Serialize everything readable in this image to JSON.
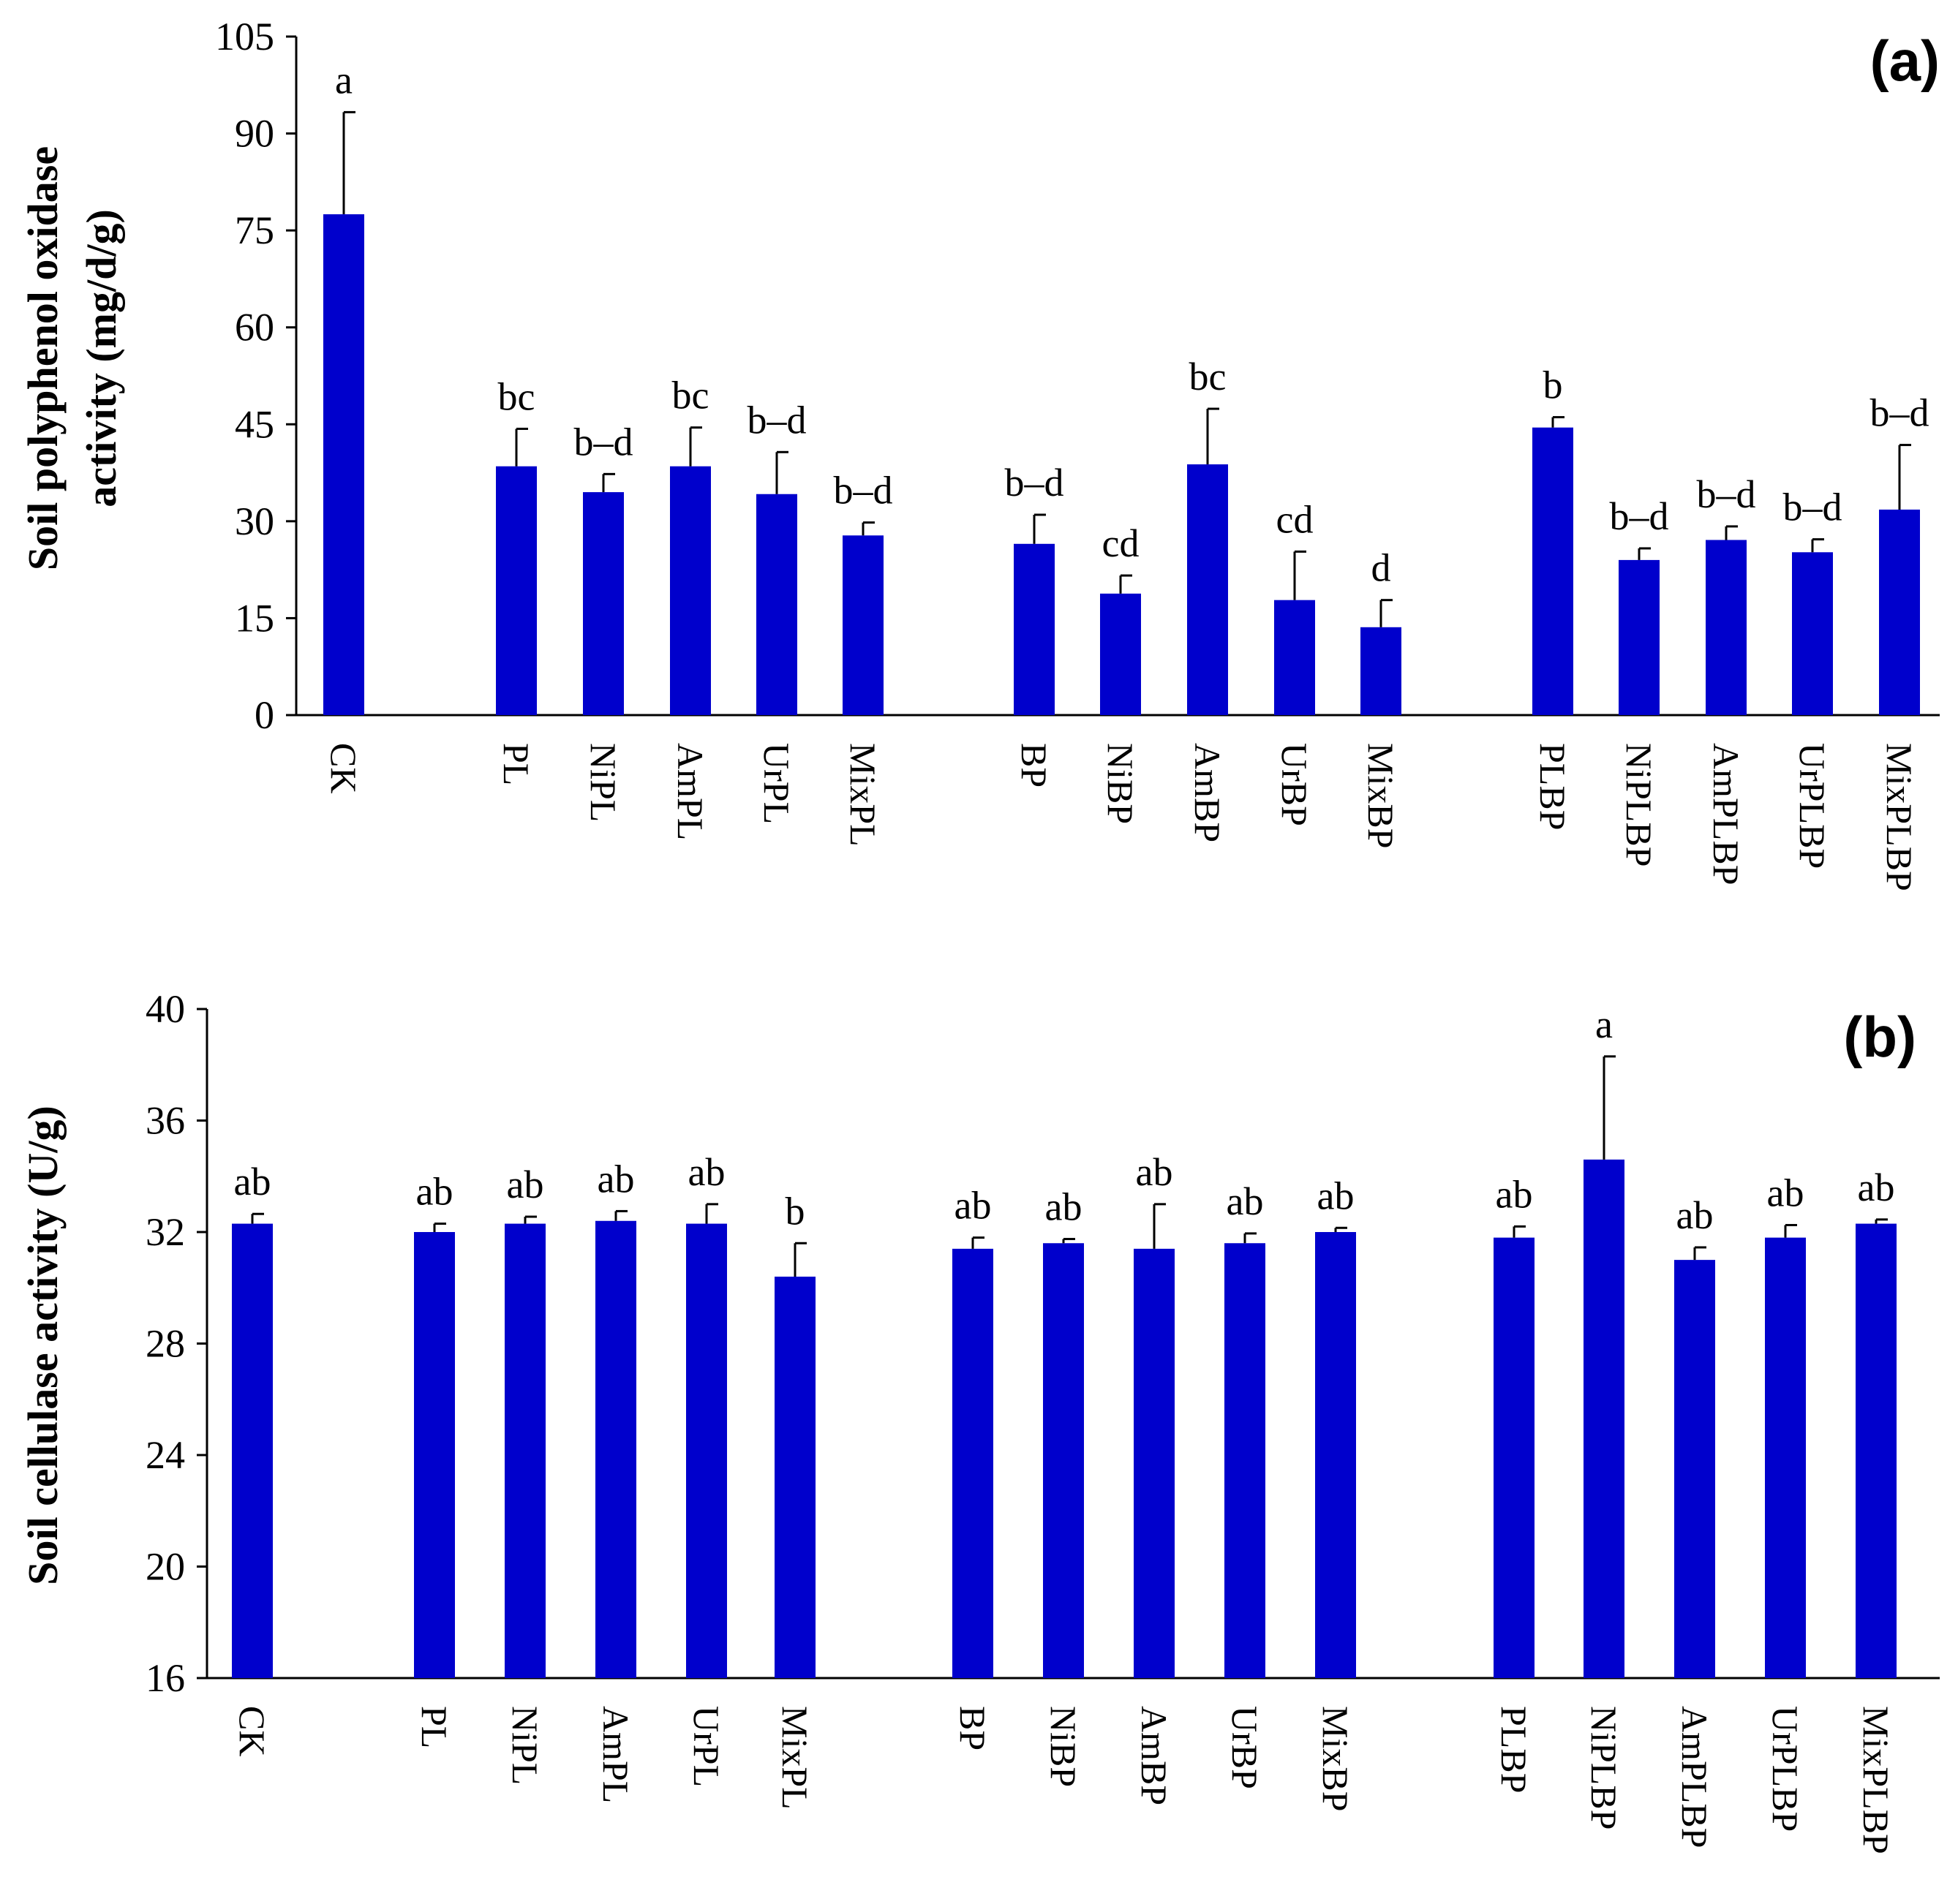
{
  "bar_color": "#0000CC",
  "chart_data": [
    {
      "type": "bar",
      "panel_label": "(a)",
      "ylabel": "Soil polyphenol oxidase activity (mg/d/g)",
      "ylabel_lines": [
        "Soil polyphenol oxidase",
        "activity (mg/d/g)"
      ],
      "ylim": [
        0,
        105
      ],
      "yticks": [
        0,
        15,
        30,
        45,
        60,
        75,
        90,
        105
      ],
      "categories": [
        "CK",
        "PL",
        "NiPL",
        "AmPL",
        "UrPL",
        "MixPL",
        "BP",
        "NiBP",
        "AmBP",
        "UrBP",
        "MixBP",
        "PLBP",
        "NiPLBP",
        "AmPLBP",
        "UrPLBP",
        "MixPLBP"
      ],
      "values": [
        77.5,
        38.5,
        34.5,
        38.5,
        34.2,
        27.8,
        26.5,
        18.8,
        38.8,
        17.8,
        13.6,
        44.5,
        24.0,
        27.1,
        25.2,
        31.8
      ],
      "errors": [
        15.8,
        5.8,
        2.8,
        6.0,
        6.5,
        2.0,
        4.5,
        2.8,
        8.6,
        7.5,
        4.2,
        1.6,
        1.8,
        2.1,
        2.0,
        10.0
      ],
      "letters": [
        "a",
        "bc",
        "b–d",
        "bc",
        "b–d",
        "b–d",
        "b–d",
        "cd",
        "bc",
        "cd",
        "d",
        "b",
        "b–d",
        "b–d",
        "b–d",
        "b–d"
      ]
    },
    {
      "type": "bar",
      "panel_label": "(b)",
      "ylabel": "Soil cellulase activity (U/g)",
      "ylabel_lines": [
        "Soil cellulase activity (U/g)"
      ],
      "ylim": [
        16,
        40
      ],
      "yticks": [
        16,
        20,
        24,
        28,
        32,
        36,
        40
      ],
      "categories": [
        "CK",
        "PL",
        "NiPL",
        "AmPL",
        "UrPL",
        "MixPL",
        "BP",
        "NiBP",
        "AmBP",
        "UrBP",
        "MixBP",
        "PLBP",
        "NiPLBP",
        "AmPLBP",
        "UrPLBP",
        "MixPLBP"
      ],
      "values": [
        32.3,
        32.0,
        32.3,
        32.4,
        32.3,
        30.4,
        31.4,
        31.6,
        31.4,
        31.6,
        32.0,
        31.8,
        34.6,
        31.0,
        31.8,
        32.3
      ],
      "errors": [
        0.35,
        0.3,
        0.25,
        0.35,
        0.7,
        1.2,
        0.4,
        0.15,
        1.6,
        0.35,
        0.15,
        0.4,
        3.7,
        0.45,
        0.45,
        0.15
      ],
      "letters": [
        "ab",
        "ab",
        "ab",
        "ab",
        "ab",
        "b",
        "ab",
        "ab",
        "ab",
        "ab",
        "ab",
        "ab",
        "a",
        "ab",
        "ab",
        "ab"
      ]
    }
  ]
}
